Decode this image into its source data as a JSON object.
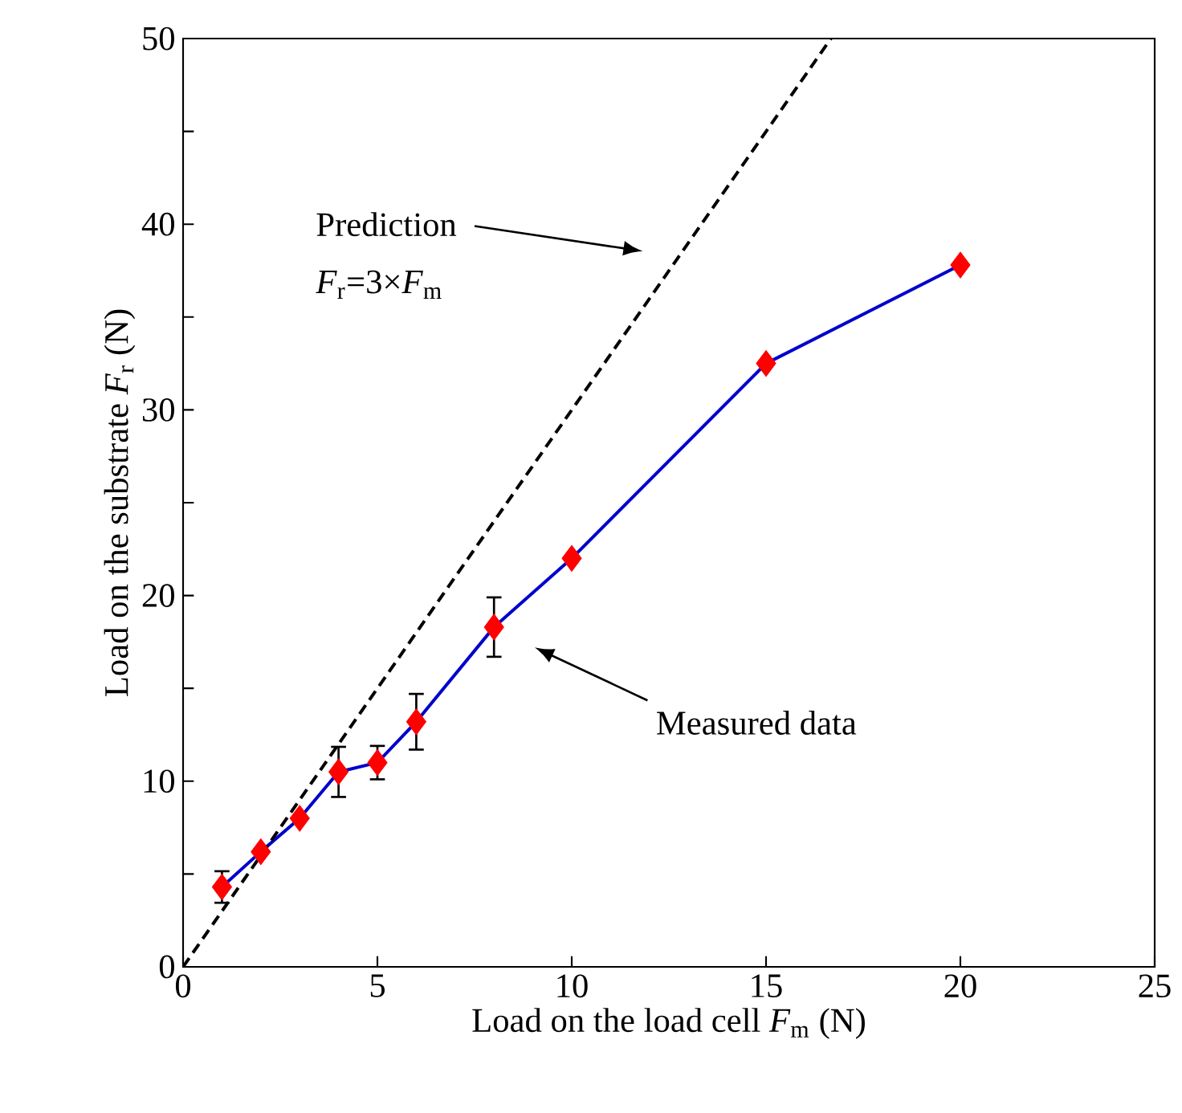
{
  "chart_data": {
    "type": "line",
    "xlabel": "Load on the load cell *F*$_{m}$ (N)",
    "ylabel": "Load on the substrate *F*$_{r}$ (N)",
    "xlim": [
      0,
      25
    ],
    "ylim": [
      0,
      50
    ],
    "xticks": [
      0,
      5,
      10,
      15,
      20,
      25
    ],
    "yticks": [
      0,
      {
        "value": 5,
        "label": null
      },
      10,
      {
        "value": 15,
        "label": null
      },
      20,
      {
        "value": 25,
        "label": null
      },
      30,
      {
        "value": 35,
        "label": null
      },
      40,
      {
        "value": 45,
        "label": null
      },
      50
    ],
    "series": [
      {
        "x": [
          1,
          2,
          3,
          4,
          5,
          6,
          8,
          10,
          15,
          20
        ],
        "values": [
          4.3,
          6.2,
          8.0,
          10.5,
          11.0,
          13.2,
          18.3,
          22.0,
          32.5,
          37.8
        ],
        "errors": [
          0.85,
          null,
          null,
          1.35,
          0.9,
          1.5,
          1.6,
          null,
          null,
          null
        ],
        "color": "#0000cc",
        "colors": [
          "#ff0000",
          "#ff0000",
          "#ff0000",
          "#ff0000",
          "#ff0000",
          "#ff0000",
          "#ff0000",
          "#ff0000",
          "#ff0000",
          "#ff0000"
        ],
        "marker": "diamond",
        "line_style": "solid"
      },
      {
        "type": "line",
        "x": [
          0,
          16.67
        ],
        "values": [
          0,
          50
        ],
        "color": "#000000",
        "marker": "none",
        "line_style": "dashed"
      }
    ],
    "annotations": [
      "Prediction",
      "*F*$_{r}$=3×*F*$_{m}$",
      "Measured data"
    ],
    "grid": false
  }
}
